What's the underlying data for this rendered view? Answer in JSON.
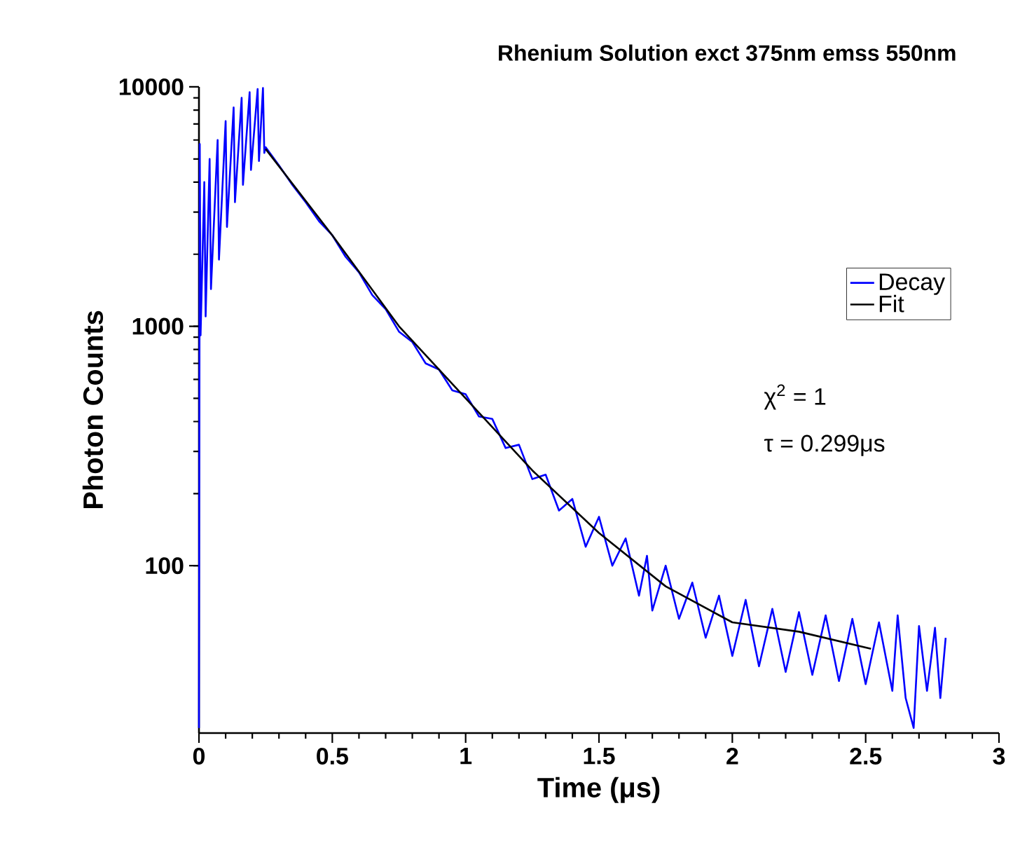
{
  "chart_data": {
    "type": "line",
    "title": "Rhenium Solution exct 375nm emss 550nm",
    "xlabel": "Time (μs)",
    "ylabel": "Photon Counts",
    "xlim": [
      0,
      3
    ],
    "ylim": [
      20,
      10000
    ],
    "xticks": [
      0,
      0.5,
      1,
      1.5,
      2,
      2.5,
      3
    ],
    "yticks": [
      100,
      1000,
      10000
    ],
    "log": true,
    "legend": "right",
    "annotations": [
      "χ$^{2}$ = 1",
      "τ  = 0.299μs"
    ],
    "series": [
      {
        "name": "Decay",
        "color": "#0000ff",
        "x": [
          0.0,
          0.003,
          0.006,
          0.02,
          0.025,
          0.04,
          0.045,
          0.07,
          0.075,
          0.1,
          0.105,
          0.13,
          0.135,
          0.16,
          0.165,
          0.19,
          0.195,
          0.22,
          0.225,
          0.24,
          0.245,
          0.25,
          0.3,
          0.35,
          0.4,
          0.45,
          0.5,
          0.55,
          0.6,
          0.65,
          0.7,
          0.75,
          0.8,
          0.85,
          0.9,
          0.95,
          1.0,
          1.05,
          1.1,
          1.15,
          1.2,
          1.25,
          1.3,
          1.35,
          1.4,
          1.45,
          1.5,
          1.55,
          1.6,
          1.65,
          1.68,
          1.7,
          1.75,
          1.8,
          1.85,
          1.9,
          1.95,
          2.0,
          2.05,
          2.1,
          2.15,
          2.2,
          2.25,
          2.3,
          2.35,
          2.4,
          2.45,
          2.5,
          2.55,
          2.6,
          2.62,
          2.65,
          2.68,
          2.7,
          2.73,
          2.76,
          2.78,
          2.8
        ],
        "values": [
          21,
          5770,
          917,
          4000,
          1100,
          5000,
          1430,
          6000,
          1900,
          7200,
          2600,
          8200,
          3300,
          9000,
          3900,
          9500,
          4500,
          9800,
          4900,
          9900,
          5300,
          5600,
          4700,
          3900,
          3300,
          2750,
          2400,
          1950,
          1680,
          1350,
          1180,
          950,
          860,
          700,
          660,
          540,
          520,
          420,
          410,
          310,
          320,
          230,
          240,
          170,
          190,
          120,
          160,
          100,
          130,
          75,
          110,
          65,
          100,
          60,
          85,
          50,
          75,
          42,
          72,
          38,
          66,
          36,
          64,
          35,
          62,
          33,
          60,
          32,
          58,
          30,
          62,
          28,
          21,
          56,
          30,
          55,
          28,
          50
        ]
      },
      {
        "name": "Fit",
        "color": "#000000",
        "x": [
          0.25,
          0.5,
          0.75,
          1.0,
          1.25,
          1.5,
          1.75,
          2.0,
          2.25,
          2.52
        ],
        "values": [
          5500,
          2400,
          1000,
          500,
          250,
          137,
          82,
          58,
          53,
          45
        ]
      }
    ]
  }
}
